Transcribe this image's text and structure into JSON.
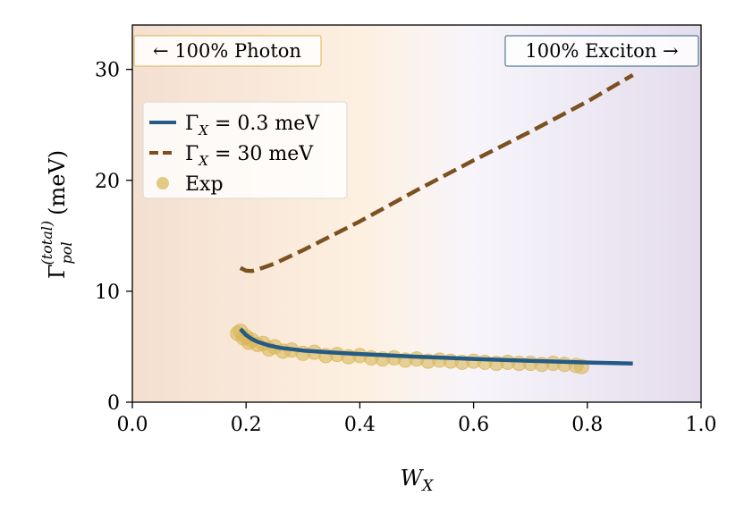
{
  "chart_data": {
    "type": "line",
    "xlabel": {
      "base": "W",
      "sub": "X"
    },
    "ylabel": {
      "base": "Γ",
      "sub": "pol",
      "sup": "(total)",
      "unit": "(meV)"
    },
    "xlim": [
      0.0,
      1.0
    ],
    "ylim": [
      0,
      34
    ],
    "xticks": [
      "0.0",
      "0.2",
      "0.4",
      "0.6",
      "0.8",
      "1.0"
    ],
    "yticks": [
      "0",
      "10",
      "20",
      "30"
    ],
    "left_annotation": "← 100% Photon",
    "right_annotation": "100% Exciton →",
    "colors": {
      "photon_bg": "#f4dfd0",
      "mid_bg": "#fdf0e0",
      "center_bg": "#f7f5fb",
      "exciton_bg": "#e4dcec",
      "left_box_edge": "#d6b64f",
      "right_box_edge": "#2e5f88"
    },
    "series": [
      {
        "name": "Γ_X = 0.3 meV",
        "legend_base": "Γ",
        "legend_sub": "X",
        "legend_rest": " = 0.3 meV",
        "style": "solid",
        "color": "#245b86",
        "x": [
          0.19,
          0.2,
          0.21,
          0.22,
          0.24,
          0.26,
          0.3,
          0.35,
          0.4,
          0.5,
          0.6,
          0.7,
          0.8,
          0.88
        ],
        "y": [
          6.6,
          6.05,
          5.7,
          5.45,
          5.12,
          4.9,
          4.66,
          4.48,
          4.34,
          4.1,
          3.9,
          3.73,
          3.58,
          3.48
        ]
      },
      {
        "name": "Γ_X = 30 meV",
        "legend_base": "Γ",
        "legend_sub": "X",
        "legend_rest": " = 30 meV",
        "style": "dashed",
        "color": "#7c5120",
        "x": [
          0.19,
          0.2,
          0.21,
          0.22,
          0.25,
          0.3,
          0.4,
          0.5,
          0.6,
          0.7,
          0.8,
          0.88
        ],
        "y": [
          12.1,
          11.85,
          11.82,
          11.95,
          12.5,
          13.7,
          16.3,
          19.1,
          21.8,
          24.4,
          27.1,
          29.5
        ]
      },
      {
        "name": "Exp",
        "legend_label": "Exp",
        "style": "markers",
        "color": "#d9b85a",
        "x": [
          0.185,
          0.19,
          0.195,
          0.2,
          0.205,
          0.21,
          0.22,
          0.23,
          0.24,
          0.25,
          0.265,
          0.28,
          0.3,
          0.32,
          0.34,
          0.36,
          0.38,
          0.4,
          0.42,
          0.44,
          0.46,
          0.48,
          0.5,
          0.52,
          0.54,
          0.56,
          0.58,
          0.6,
          0.62,
          0.64,
          0.66,
          0.68,
          0.7,
          0.72,
          0.74,
          0.76,
          0.78,
          0.79
        ],
        "y": [
          6.2,
          6.4,
          5.8,
          5.9,
          5.4,
          5.6,
          5.2,
          5.3,
          4.8,
          5.0,
          4.6,
          4.7,
          4.4,
          4.5,
          4.2,
          4.3,
          4.1,
          4.2,
          4.0,
          3.9,
          4.0,
          3.8,
          3.9,
          3.7,
          3.8,
          3.7,
          3.6,
          3.7,
          3.6,
          3.5,
          3.6,
          3.5,
          3.5,
          3.4,
          3.5,
          3.4,
          3.3,
          3.2
        ]
      }
    ]
  }
}
